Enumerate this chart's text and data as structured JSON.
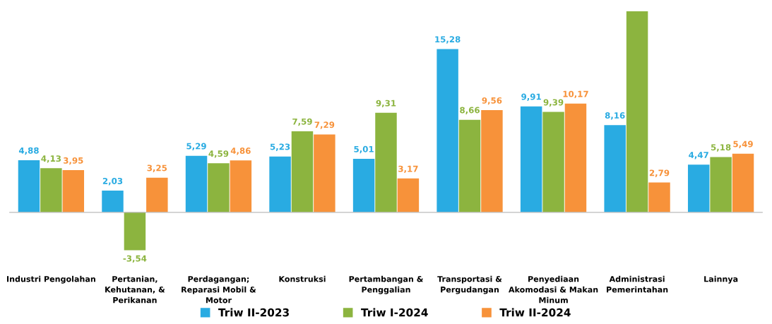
{
  "chart_data": {
    "type": "bar",
    "categories": [
      "Industri Pengolahan",
      "Pertanian,\nKehutanan, &\nPerikanan",
      "Perdagangan;\nReparasi Mobil &\nMotor",
      "Konstruksi",
      "Pertambangan &\nPenggalian",
      "Transportasi &\nPergudangan",
      "Penyediaan\nAkomodasi & Makan\nMinum",
      "Administrasi\nPemerintahan",
      "Lainnya"
    ],
    "series": [
      {
        "name": "Triw II-2023",
        "color": "#29abe2",
        "values": [
          4.88,
          2.03,
          5.29,
          5.23,
          5.01,
          15.28,
          9.91,
          8.16,
          4.47
        ],
        "value_labels": [
          "4,88",
          "2,03",
          "5,29",
          "5,23",
          "5,01",
          "15,28",
          "9,91",
          "8,16",
          "4,47"
        ]
      },
      {
        "name": "Triw I-2024",
        "color": "#8cb43f",
        "values": [
          4.13,
          -3.54,
          4.59,
          7.59,
          9.31,
          8.66,
          9.39,
          18.8,
          5.18
        ],
        "value_labels": [
          "4,13",
          "-3,54",
          "4,59",
          "7,59",
          "9,31",
          "8,66",
          "9,39",
          null,
          "5,18"
        ]
      },
      {
        "name": "Triw II-2024",
        "color": "#f7923a",
        "values": [
          3.95,
          3.25,
          4.86,
          7.29,
          3.17,
          9.56,
          10.17,
          2.79,
          5.49
        ],
        "value_labels": [
          "3,95",
          "3,25",
          "4,86",
          "7,29",
          "3,17",
          "9,56",
          "10,17",
          "2,79",
          "5,49"
        ]
      }
    ],
    "legend": "bottom",
    "grid": false
  }
}
